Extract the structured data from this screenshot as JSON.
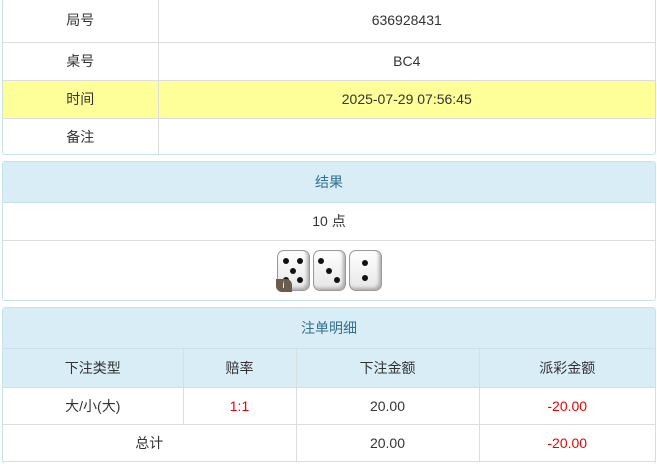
{
  "info": {
    "rows": [
      {
        "label": "局号",
        "value": "636928431"
      },
      {
        "label": "桌号",
        "value": "BC4"
      },
      {
        "label": "时间",
        "value": "2025-07-29 07:56:45"
      },
      {
        "label": "备注",
        "value": ""
      }
    ],
    "highlight_color": "#ffff99"
  },
  "result": {
    "title": "结果",
    "points": "10 点",
    "dice": [
      5,
      3,
      2
    ],
    "info_badge": "i"
  },
  "bets": {
    "title": "注单明细",
    "headers": [
      "下注类型",
      "赔率",
      "下注金额",
      "派彩金额"
    ],
    "rows": [
      {
        "type": "大/小(大)",
        "odds": "1:1",
        "amount": "20.00",
        "payout": "-20.00"
      }
    ],
    "total": {
      "label": "总计",
      "amount": "20.00",
      "payout": "-20.00"
    }
  }
}
